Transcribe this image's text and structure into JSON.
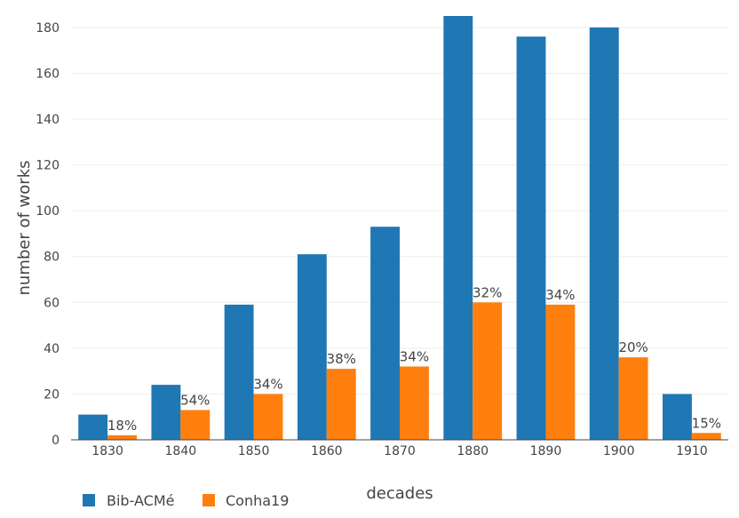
{
  "chart_data": {
    "type": "bar",
    "categories": [
      "1830",
      "1840",
      "1850",
      "1860",
      "1870",
      "1880",
      "1890",
      "1900",
      "1910"
    ],
    "series": [
      {
        "name": "Bib-ACMé",
        "values": [
          11,
          24,
          59,
          81,
          93,
          185,
          176,
          180,
          20
        ],
        "color": "#1f77b4"
      },
      {
        "name": "Conha19",
        "values": [
          2,
          13,
          20,
          31,
          32,
          60,
          59,
          36,
          3
        ],
        "color": "#ff7f0e",
        "labels": [
          "18%",
          "54%",
          "34%",
          "38%",
          "34%",
          "32%",
          "34%",
          "20%",
          "15%"
        ]
      }
    ],
    "xlabel": "decades",
    "ylabel": "number of works",
    "ylim": [
      0,
      185
    ],
    "yticks": [
      0,
      20,
      40,
      60,
      80,
      100,
      120,
      140,
      160,
      180
    ],
    "grid": true,
    "legend_position": "bottom-left"
  }
}
